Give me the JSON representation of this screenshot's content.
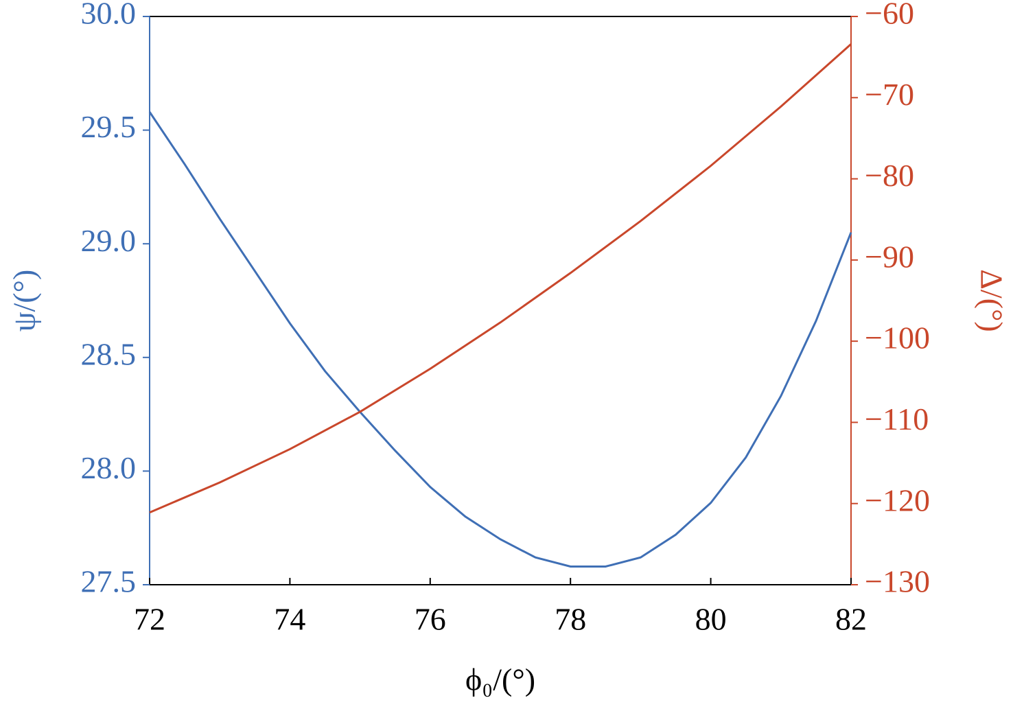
{
  "chart_data": {
    "type": "line",
    "xlabel": "ϕ₀/(°)",
    "ylabel": "ψ/(°)",
    "y2label": "Δ/(°)",
    "xlim": [
      72,
      82
    ],
    "xticks": [
      72,
      74,
      76,
      78,
      80,
      82
    ],
    "ylim": [
      27.5,
      30
    ],
    "yticks": [
      27.5,
      {
        "value": 28,
        "label": "28.0"
      },
      28.5,
      {
        "value": 29,
        "label": "29.0"
      },
      29.5,
      {
        "value": 30,
        "label": "30.0"
      }
    ],
    "y2lim": [
      -130,
      -60
    ],
    "y2ticks": [
      {
        "value": -130,
        "label": "−130"
      },
      {
        "value": -120,
        "label": "−120"
      },
      {
        "value": -110,
        "label": "−110"
      },
      {
        "value": -100,
        "label": "−100"
      },
      {
        "value": -90,
        "label": "−90"
      },
      {
        "value": -80,
        "label": "−80"
      },
      {
        "value": -70,
        "label": "−70"
      },
      {
        "value": -60,
        "label": "−60"
      }
    ],
    "ycolor": "#3f6fb5",
    "y2color": "#c9472b",
    "series": [
      {
        "color": "#3f6fb5",
        "axis": "y",
        "x": [
          72,
          72.5,
          73,
          73.5,
          74,
          74.5,
          75,
          75.5,
          76,
          76.5,
          77,
          77.5,
          78,
          78.5,
          79,
          79.5,
          80,
          80.5,
          81,
          81.5,
          82
        ],
        "values": [
          29.58,
          29.35,
          29.11,
          28.88,
          28.65,
          28.44,
          28.26,
          28.09,
          27.93,
          27.8,
          27.7,
          27.62,
          27.58,
          27.58,
          27.62,
          27.72,
          27.86,
          28.06,
          28.33,
          28.66,
          29.05
        ]
      },
      {
        "color": "#c9472b",
        "axis": "y2",
        "x": [
          72,
          73,
          74,
          75,
          76,
          77,
          78,
          79,
          80,
          81,
          82
        ],
        "values": [
          -121.1,
          -117.4,
          -113.3,
          -108.7,
          -103.4,
          -97.7,
          -91.6,
          -85.2,
          -78.4,
          -71.1,
          -63.4
        ]
      }
    ]
  }
}
